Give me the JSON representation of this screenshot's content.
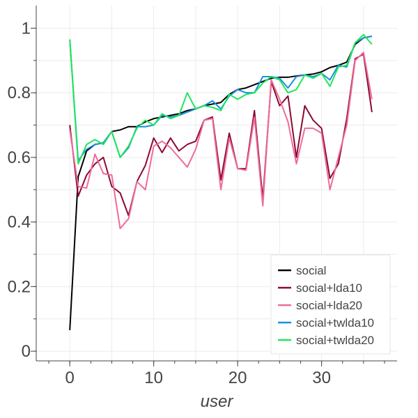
{
  "chart_data": {
    "type": "line",
    "xlabel": "user",
    "ylabel": "",
    "xlim": [
      -4,
      39
    ],
    "ylim": [
      -0.03,
      1.07
    ],
    "xticks": [
      0,
      10,
      20,
      30
    ],
    "xtick_labels": [
      "0",
      "10",
      "20",
      "30"
    ],
    "yticks": [
      0,
      0.2,
      0.4,
      0.6,
      0.8,
      1
    ],
    "ytick_labels": [
      "0",
      "0.2",
      "0.4",
      "0.6",
      "0.8",
      "1"
    ],
    "grid": true,
    "legend_position": "bottom-right",
    "x": [
      0,
      1,
      2,
      3,
      4,
      5,
      6,
      7,
      8,
      9,
      10,
      11,
      12,
      13,
      14,
      15,
      16,
      17,
      18,
      19,
      20,
      21,
      22,
      23,
      24,
      25,
      26,
      27,
      28,
      29,
      30,
      31,
      32,
      33,
      34,
      35,
      36
    ],
    "series": [
      {
        "name": "social",
        "color": "#000000",
        "values": [
          0.065,
          0.54,
          0.62,
          0.64,
          0.645,
          0.68,
          0.685,
          0.695,
          0.695,
          0.71,
          0.72,
          0.725,
          0.73,
          0.735,
          0.745,
          0.75,
          0.76,
          0.765,
          0.77,
          0.795,
          0.81,
          0.815,
          0.825,
          0.835,
          0.845,
          0.848,
          0.848,
          0.852,
          0.855,
          0.858,
          0.865,
          0.878,
          0.885,
          0.895,
          0.95,
          0.97,
          0.975
        ]
      },
      {
        "name": "social+lda10",
        "color": "#8b0a2e",
        "values": [
          0.7,
          0.48,
          0.545,
          0.58,
          0.6,
          0.51,
          0.49,
          0.42,
          0.525,
          0.575,
          0.66,
          0.615,
          0.66,
          0.62,
          0.64,
          0.65,
          0.715,
          0.725,
          0.53,
          0.675,
          0.565,
          0.565,
          0.745,
          0.47,
          0.835,
          0.76,
          0.79,
          0.6,
          0.76,
          0.715,
          0.69,
          0.535,
          0.58,
          0.72,
          0.905,
          0.92,
          0.74
        ]
      },
      {
        "name": "social+lda20",
        "color": "#f06a9a",
        "values": [
          0.685,
          0.51,
          0.505,
          0.61,
          0.55,
          0.545,
          0.38,
          0.41,
          0.525,
          0.5,
          0.635,
          0.65,
          0.63,
          0.6,
          0.57,
          0.625,
          0.715,
          0.72,
          0.5,
          0.66,
          0.565,
          0.56,
          0.725,
          0.45,
          0.84,
          0.78,
          0.71,
          0.58,
          0.69,
          0.69,
          0.675,
          0.5,
          0.6,
          0.7,
          0.9,
          0.925,
          0.78
        ]
      },
      {
        "name": "social+twlda10",
        "color": "#1a8fe0",
        "values": [
          0.965,
          0.59,
          0.625,
          0.64,
          0.645,
          0.68,
          0.6,
          0.63,
          0.695,
          0.695,
          0.7,
          0.73,
          0.725,
          0.73,
          0.74,
          0.75,
          0.76,
          0.775,
          0.75,
          0.79,
          0.81,
          0.8,
          0.8,
          0.85,
          0.85,
          0.845,
          0.815,
          0.85,
          0.855,
          0.85,
          0.86,
          0.84,
          0.885,
          0.88,
          0.955,
          0.97,
          0.975
        ]
      },
      {
        "name": "social+twlda20",
        "color": "#1fe65a",
        "values": [
          0.965,
          0.58,
          0.64,
          0.655,
          0.64,
          0.68,
          0.6,
          0.635,
          0.69,
          0.715,
          0.7,
          0.735,
          0.72,
          0.73,
          0.8,
          0.75,
          0.76,
          0.755,
          0.745,
          0.795,
          0.78,
          0.795,
          0.8,
          0.83,
          0.85,
          0.84,
          0.8,
          0.81,
          0.855,
          0.845,
          0.86,
          0.82,
          0.88,
          0.885,
          0.955,
          0.98,
          0.95
        ]
      }
    ]
  }
}
